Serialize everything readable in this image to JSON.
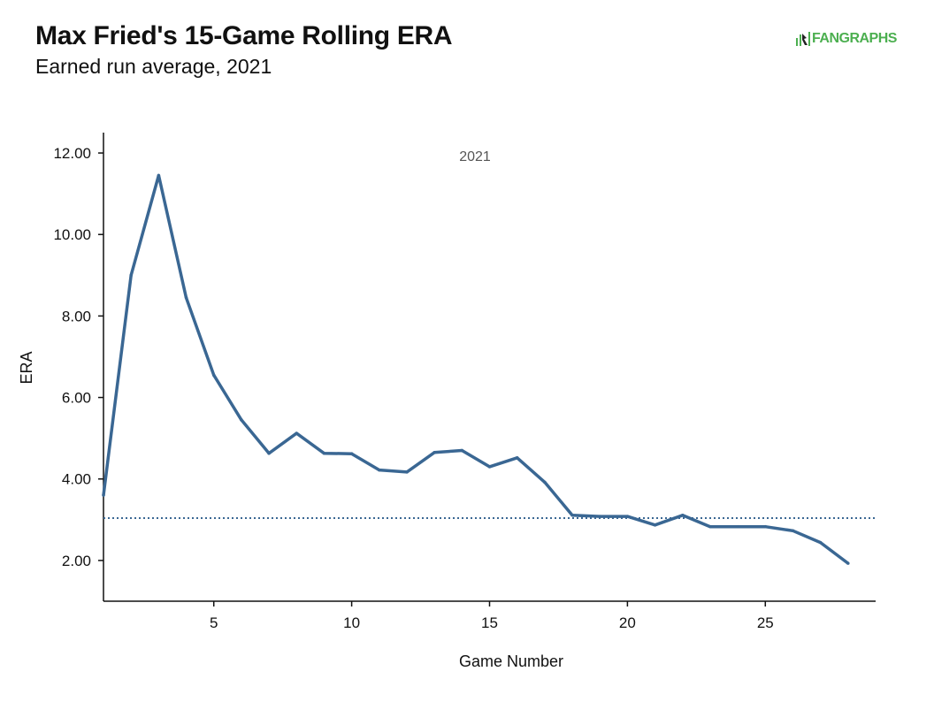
{
  "header": {
    "title": "Max Fried's 15-Game Rolling ERA",
    "subtitle": "Earned run average, 2021",
    "logo_text": "FANGRAPHS",
    "logo_icon": "fangraphs-logo-icon"
  },
  "colors": {
    "line": "#3a6793",
    "reference_line": "#3a6793",
    "logo": "#4caf50"
  },
  "chart_data": {
    "type": "line",
    "title": "Max Fried's 15-Game Rolling ERA",
    "subtitle": "Earned run average, 2021",
    "xlabel": "Game Number",
    "ylabel": "ERA",
    "annotation": "2021",
    "xlim": [
      1,
      29
    ],
    "ylim": [
      1.0,
      12.5
    ],
    "x_ticks": [
      5,
      10,
      15,
      20,
      25
    ],
    "y_ticks": [
      "2.00",
      "4.00",
      "6.00",
      "8.00",
      "10.00",
      "12.00"
    ],
    "y_tick_values": [
      2,
      4,
      6,
      8,
      10,
      12
    ],
    "grid": false,
    "reference_line": {
      "y": 3.04,
      "style": "dotted"
    },
    "series": [
      {
        "x": [
          1,
          2,
          3,
          4,
          5,
          6,
          7,
          8,
          9,
          10,
          11,
          12,
          13,
          14,
          15,
          16,
          17,
          18,
          19,
          20,
          21,
          22,
          23,
          24,
          25,
          26,
          27,
          28
        ],
        "values": [
          3.6,
          9.0,
          11.45,
          8.45,
          6.55,
          5.45,
          4.63,
          5.12,
          4.63,
          4.62,
          4.22,
          4.17,
          4.65,
          4.7,
          4.3,
          4.52,
          3.92,
          3.11,
          3.08,
          3.08,
          2.87,
          3.11,
          2.83,
          2.83,
          2.83,
          2.73,
          2.44,
          1.93
        ]
      }
    ]
  }
}
